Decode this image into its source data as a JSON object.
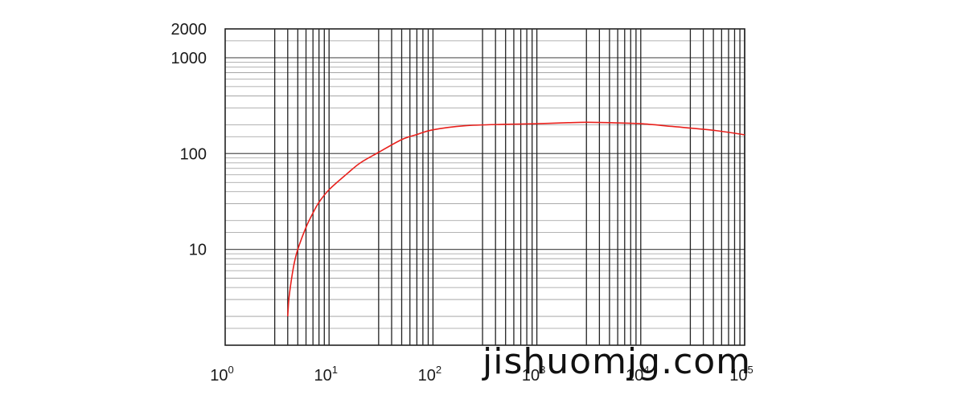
{
  "chart_data": {
    "type": "line",
    "title": "",
    "xlabel": "",
    "ylabel": "",
    "x_scale": "log",
    "y_scale": "log",
    "xlim": [
      1,
      100000
    ],
    "ylim": [
      1,
      2000
    ],
    "grid": true,
    "x_tick_labels": [
      {
        "base": "10",
        "exp": "0",
        "value": 1
      },
      {
        "base": "10",
        "exp": "1",
        "value": 10
      },
      {
        "base": "10",
        "exp": "2",
        "value": 100
      },
      {
        "base": "10",
        "exp": "3",
        "value": 1000
      },
      {
        "base": "10",
        "exp": "4",
        "value": 10000
      },
      {
        "base": "10",
        "exp": "5",
        "value": 100000
      }
    ],
    "y_tick_labels": [
      {
        "label": "2000",
        "value": 2000
      },
      {
        "label": "1000",
        "value": 1000
      },
      {
        "label": "100",
        "value": 100
      },
      {
        "label": "10",
        "value": 10
      }
    ],
    "x_grid_values": [
      3,
      4,
      5,
      6,
      7,
      8,
      9,
      10,
      30,
      40,
      50,
      60,
      70,
      80,
      90,
      100,
      300,
      400,
      500,
      600,
      700,
      800,
      900,
      1000,
      3000,
      4000,
      5000,
      6000,
      7000,
      8000,
      9000,
      10000,
      30000,
      40000,
      50000,
      60000,
      70000,
      80000,
      90000,
      100000
    ],
    "y_grid_values": [
      1.5,
      2,
      3,
      4,
      5,
      6,
      7,
      8,
      9,
      10,
      15,
      20,
      30,
      40,
      50,
      60,
      70,
      80,
      90,
      100,
      150,
      200,
      300,
      400,
      500,
      600,
      700,
      800,
      900,
      1000,
      1500
    ],
    "series": [
      {
        "color": "#e8201c",
        "points": [
          [
            4,
            2
          ],
          [
            4.1,
            3
          ],
          [
            4.3,
            4.5
          ],
          [
            4.6,
            7
          ],
          [
            5,
            10
          ],
          [
            6,
            17
          ],
          [
            7,
            24
          ],
          [
            8,
            31
          ],
          [
            10,
            42
          ],
          [
            15,
            62
          ],
          [
            20,
            80
          ],
          [
            30,
            103
          ],
          [
            50,
            140
          ],
          [
            70,
            158
          ],
          [
            100,
            177
          ],
          [
            200,
            195
          ],
          [
            500,
            202
          ],
          [
            1000,
            205
          ],
          [
            2000,
            210
          ],
          [
            3000,
            212
          ],
          [
            5000,
            210
          ],
          [
            10000,
            205
          ],
          [
            20000,
            192
          ],
          [
            50000,
            175
          ],
          [
            100000,
            157
          ]
        ]
      }
    ]
  },
  "watermark": "jishuomjg.com"
}
